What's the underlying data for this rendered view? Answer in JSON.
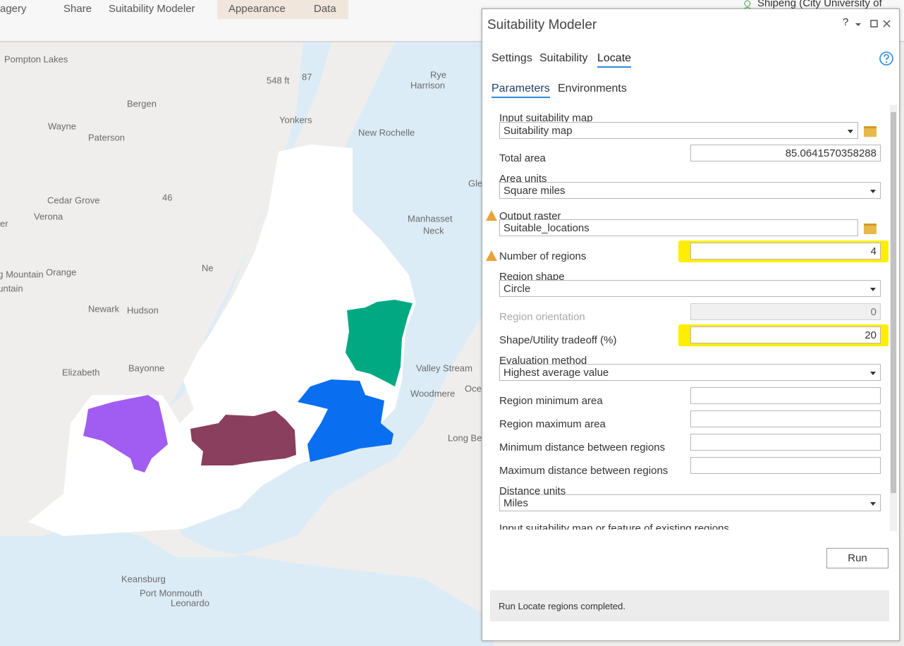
{
  "ribbon_tabs": [
    "agery",
    "Share",
    "Suitability Modeler",
    "Appearance",
    "Data"
  ],
  "user": "Shipeng (City University of New",
  "map_labels": [
    "Pompton Lakes",
    "548 ft",
    "87",
    "Rye",
    "Harrison",
    "Bergen",
    "Wayne",
    "Paterson",
    "Yonkers",
    "New Rochelle",
    "Gle",
    "46",
    "Cedar Grove",
    "Verona",
    "er",
    "Manhasset",
    "Neck",
    "ng Mountain",
    "ountain",
    "Orange",
    "Ne",
    "Newark",
    "Hudson",
    "Elizabeth",
    "Bayonne",
    "Valley Stream",
    "Woodmere",
    "Oce",
    "Long Be",
    "Keansburg",
    "Port Monmouth",
    "Leonardo"
  ],
  "panel": {
    "title": "Suitability Modeler",
    "help": "?",
    "tabs": [
      "Settings",
      "Suitability",
      "Locate"
    ],
    "subtabs": [
      "Parameters",
      "Environments"
    ],
    "fields": [
      {
        "label": "Input suitability map",
        "value": "Suitability map"
      },
      {
        "label": "Total area",
        "value": "85.0641570358288"
      },
      {
        "label": "Area units",
        "value": "Square miles"
      },
      {
        "label": "Output raster",
        "value": "Suitable_locations"
      },
      {
        "label": "Number of regions",
        "value": "4"
      },
      {
        "label": "Region shape",
        "value": "Circle"
      },
      {
        "label": "Region orientation",
        "value": "0"
      },
      {
        "label": "Shape/Utility tradeoff (%)",
        "value": "20"
      },
      {
        "label": "Evaluation method",
        "value": "Highest average value"
      },
      {
        "label": "Region minimum area"
      },
      {
        "label": "Region maximum area"
      },
      {
        "label": "Minimum distance between regions"
      },
      {
        "label": "Maximum distance between regions"
      },
      {
        "label": "Distance units",
        "value": "Miles"
      },
      {
        "label": "Input suitability map or feature of existing regions"
      }
    ],
    "run": "Run",
    "status": "Run Locate regions completed."
  }
}
